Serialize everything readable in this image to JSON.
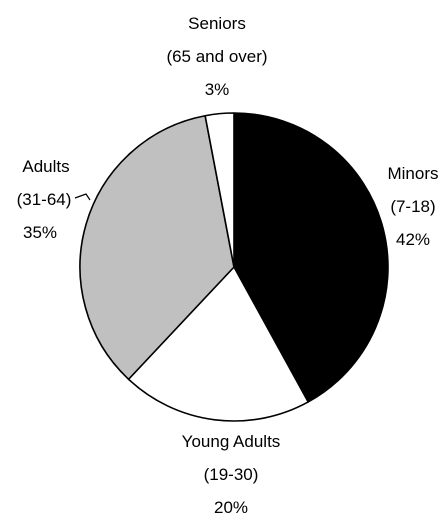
{
  "chart_data": {
    "type": "pie",
    "title": "",
    "legend": "none",
    "start_angle_deg": 0,
    "direction": "clockwise",
    "slices": [
      {
        "label_lines": [
          "Minors",
          "(7-18)"
        ],
        "range": "7-18",
        "name": "Minors",
        "percent_label": "42%",
        "value": 42,
        "color": "#000000"
      },
      {
        "label_lines": [
          "Young Adults",
          "(19-30)"
        ],
        "range": "19-30",
        "name": "Young Adults",
        "percent_label": "20%",
        "value": 20,
        "color": "#ffffff"
      },
      {
        "label_lines": [
          "Adults",
          "(31-64)"
        ],
        "range": "31-64",
        "name": "Adults",
        "percent_label": "35%",
        "value": 35,
        "color": "#c0c0c0"
      },
      {
        "label_lines": [
          "Seniors",
          "(65 and over)"
        ],
        "range": "65 and over",
        "name": "Seniors",
        "percent_label": "3%",
        "value": 3,
        "color": "#ffffff"
      }
    ]
  }
}
